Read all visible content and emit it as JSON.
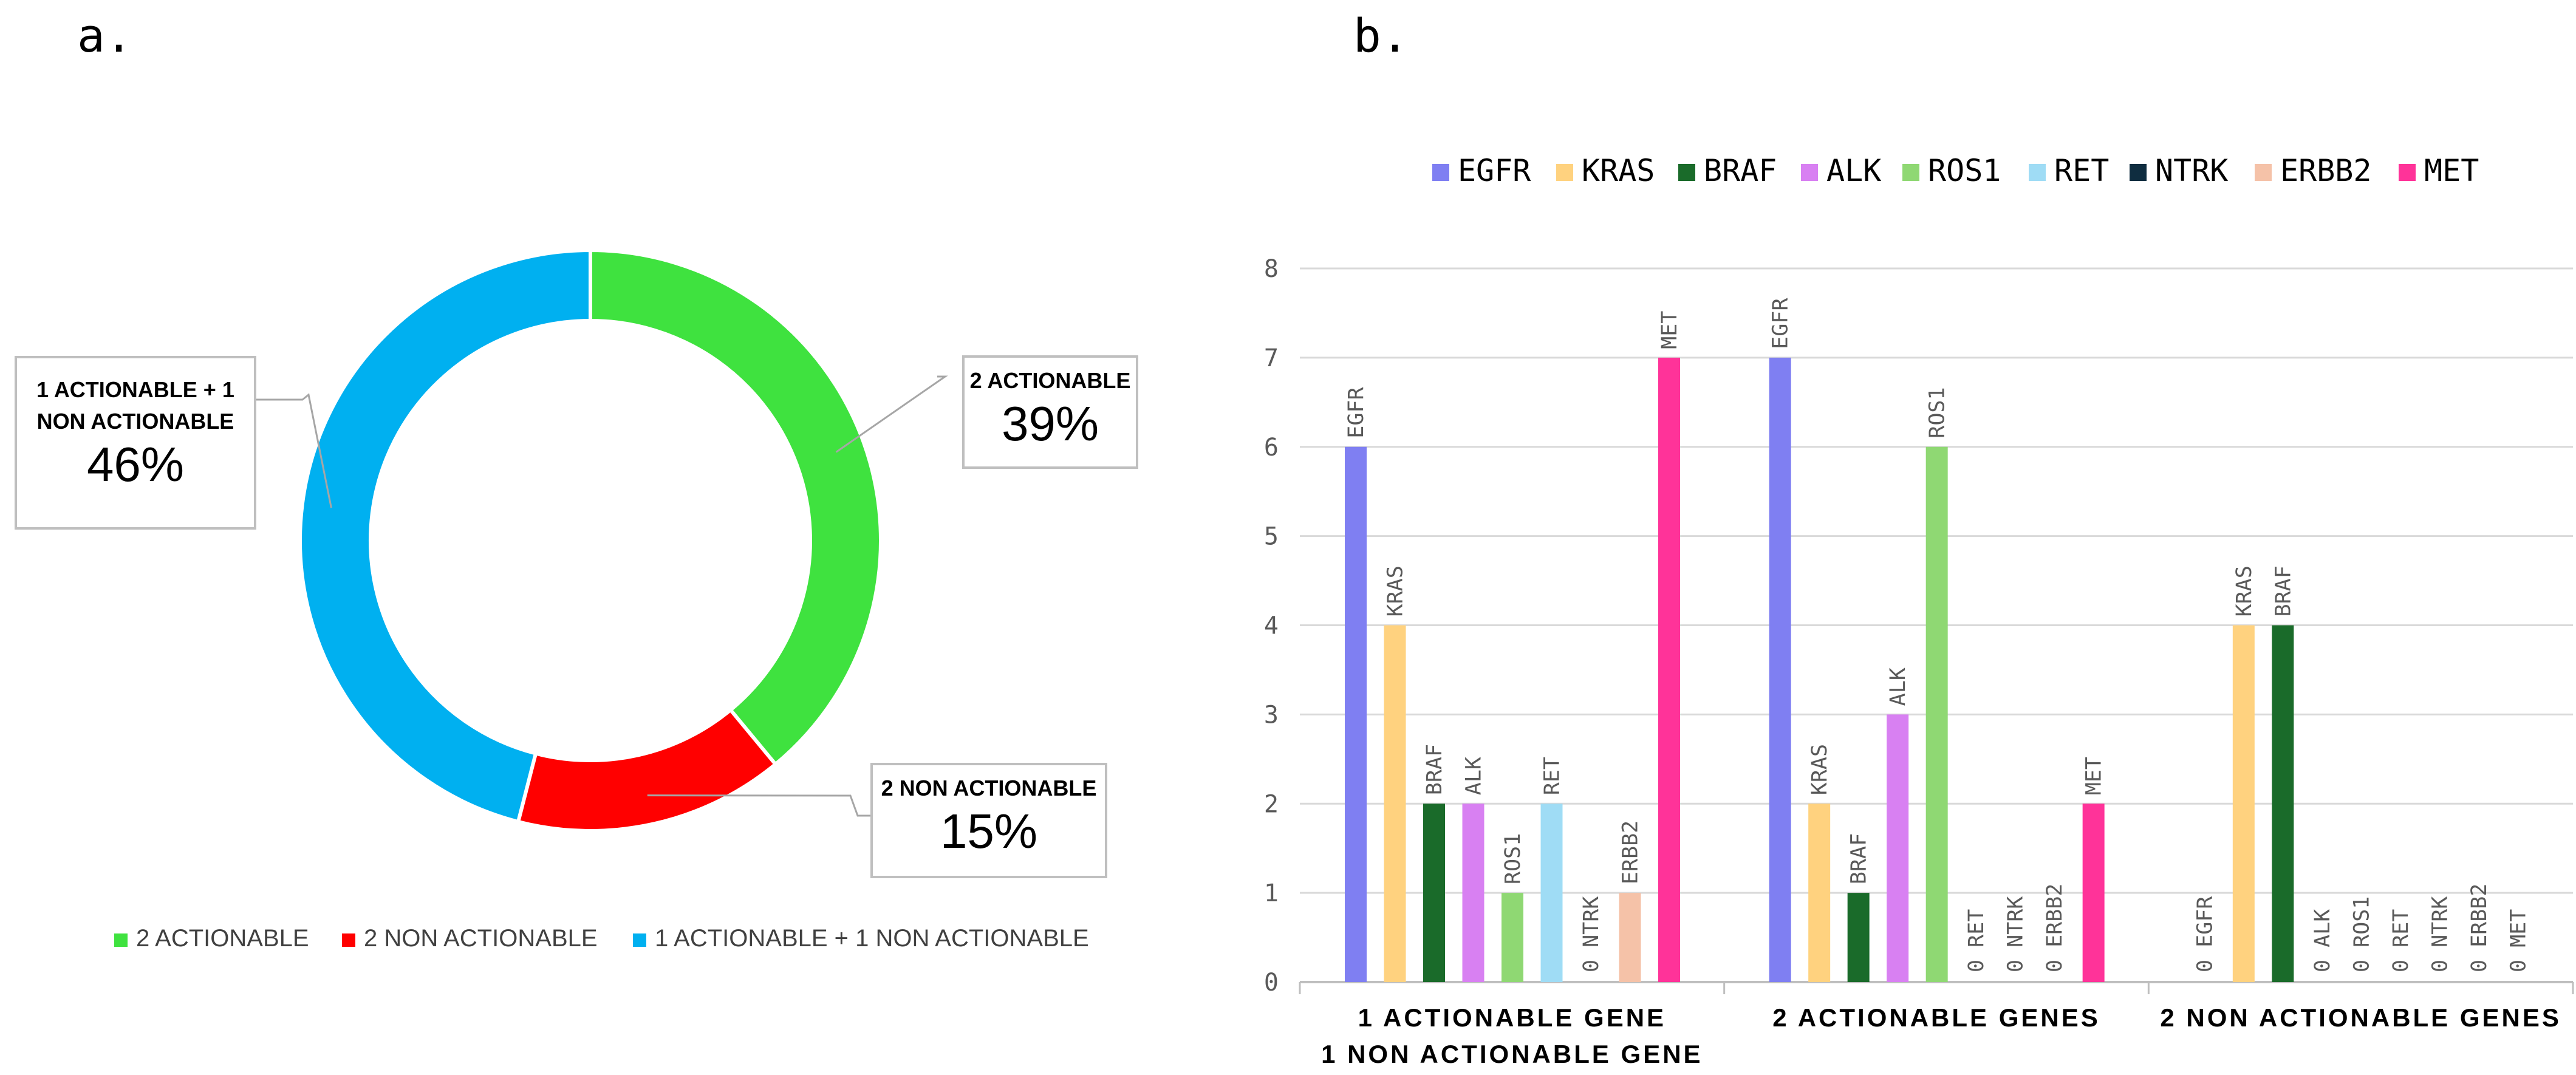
{
  "panel_a": {
    "label": "a."
  },
  "panel_b": {
    "label": "b."
  },
  "chart_data": [
    {
      "type": "pie",
      "subtype": "donut",
      "categories": [
        "2 ACTIONABLE",
        "2 NON ACTIONABLE",
        "1 ACTIONABLE + 1 NON ACTIONABLE"
      ],
      "values": [
        39,
        15,
        46
      ],
      "value_labels": [
        "39%",
        "15%",
        "46%"
      ],
      "callout_labels": [
        [
          "2 ACTIONABLE"
        ],
        [
          "2 NON ACTIONABLE"
        ],
        [
          "1 ACTIONABLE + 1",
          "NON ACTIONABLE"
        ]
      ],
      "colors": [
        "#3fe23f",
        "#ff0000",
        "#00b0f0"
      ],
      "legend": "bottom"
    },
    {
      "type": "bar",
      "categories": [
        [
          "1 ACTIONABLE GENE",
          "1 NON ACTIONABLE GENE"
        ],
        [
          "2 ACTIONABLE GENES"
        ],
        [
          "2 NON ACTIONABLE GENES"
        ]
      ],
      "series": [
        {
          "name": "EGFR",
          "color": "#7f7ff2",
          "values": [
            6,
            7,
            0
          ]
        },
        {
          "name": "KRAS",
          "color": "#ffd27f",
          "values": [
            4,
            2,
            4
          ]
        },
        {
          "name": "BRAF",
          "color": "#1a6b2a",
          "values": [
            2,
            1,
            4
          ]
        },
        {
          "name": "ALK",
          "color": "#d880f2",
          "values": [
            2,
            3,
            0
          ]
        },
        {
          "name": "ROS1",
          "color": "#8fd873",
          "values": [
            1,
            6,
            0
          ]
        },
        {
          "name": "RET",
          "color": "#9fdcf5",
          "values": [
            2,
            0,
            0
          ]
        },
        {
          "name": "NTRK",
          "color": "#0f2d40",
          "values": [
            0,
            0,
            0
          ]
        },
        {
          "name": "ERBB2",
          "color": "#f5c2a8",
          "values": [
            1,
            0,
            0
          ]
        },
        {
          "name": "MET",
          "color": "#ff3399",
          "values": [
            7,
            2,
            0
          ]
        }
      ],
      "zero_label": "0",
      "ylim": [
        0,
        8
      ],
      "yticks": [
        "0",
        "1",
        "2",
        "3",
        "4",
        "5",
        "6",
        "7",
        "8"
      ],
      "grid": true,
      "legend": "top"
    }
  ]
}
